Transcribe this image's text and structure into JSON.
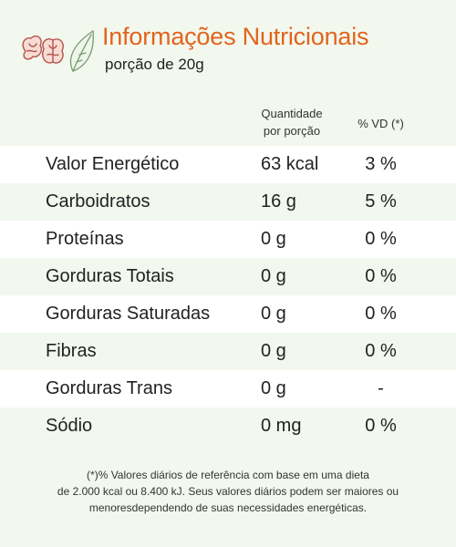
{
  "header": {
    "title": "Informações Nutricionais",
    "serving": "porção de 20g",
    "logo_icon": "nuts-and-leaf-icon"
  },
  "table": {
    "columns": {
      "quantity_line1": "Quantidade",
      "quantity_line2": "por porção",
      "daily_value": "% VD (*)"
    },
    "rows": [
      {
        "name": "Valor Energético",
        "quantity": "63 kcal",
        "dv": "3 %"
      },
      {
        "name": "Carboidratos",
        "quantity": "16 g",
        "dv": "5 %"
      },
      {
        "name": "Proteínas",
        "quantity": "0 g",
        "dv": "0 %"
      },
      {
        "name": "Gorduras Totais",
        "quantity": "0 g",
        "dv": "0 %"
      },
      {
        "name": "Gorduras Saturadas",
        "quantity": "0 g",
        "dv": "0 %"
      },
      {
        "name": "Fibras",
        "quantity": "0 g",
        "dv": "0 %"
      },
      {
        "name": "Gorduras Trans",
        "quantity": "0 g",
        "dv": "-"
      },
      {
        "name": "Sódio",
        "quantity": "0 mg",
        "dv": "0 %"
      }
    ]
  },
  "footnote": {
    "line1": "(*)% Valores diários de referência com base em uma dieta",
    "line2": "de 2.000 kcal ou 8.400 kJ. Seus valores diários podem ser maiores ou",
    "line3": "menoresdependendo de suas necessidades energéticas."
  },
  "colors": {
    "accent": "#e2641c",
    "background": "#f2f8ee",
    "row_alt": "#ffffff",
    "logo_stroke": "#b5534a"
  }
}
